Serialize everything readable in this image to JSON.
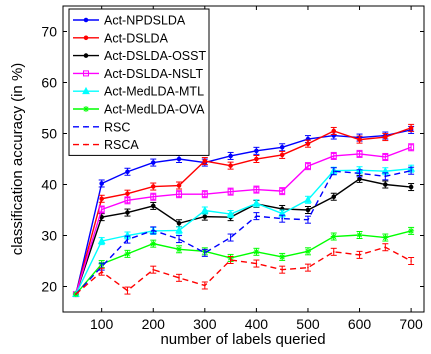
{
  "chart_data": {
    "type": "line",
    "title": "",
    "xlabel": "number of labels queried",
    "ylabel": "classification accuracy (in %)",
    "xlim": [
      25,
      725
    ],
    "ylim": [
      15,
      75
    ],
    "xticks": [
      100,
      200,
      300,
      400,
      500,
      600,
      700
    ],
    "yticks": [
      20,
      30,
      40,
      50,
      60,
      70
    ],
    "legend_position": "top-left",
    "grid": false,
    "x": [
      50,
      100,
      150,
      200,
      250,
      300,
      350,
      400,
      450,
      500,
      550,
      600,
      650,
      700
    ],
    "series": [
      {
        "name": "Act-NPDSLDA",
        "color": "#0000ff",
        "dash": "solid",
        "marker": "dot",
        "values": [
          18.5,
          40.2,
          42.5,
          44.3,
          45.0,
          44.3,
          45.6,
          46.6,
          47.3,
          48.9,
          49.6,
          49.2,
          49.6,
          50.7
        ]
      },
      {
        "name": "Act-DSLDA",
        "color": "#ff0000",
        "dash": "solid",
        "marker": "dot",
        "values": [
          18.5,
          37.2,
          38.2,
          39.6,
          39.8,
          44.6,
          43.7,
          45.0,
          45.8,
          48.0,
          50.5,
          48.8,
          49.3,
          51.1
        ]
      },
      {
        "name": "Act-DSLDA-OSST",
        "color": "#000000",
        "dash": "solid",
        "marker": "dot",
        "values": [
          18.5,
          33.6,
          34.5,
          35.8,
          32.4,
          33.7,
          33.6,
          36.2,
          35.2,
          35.0,
          37.6,
          41.1,
          40.0,
          39.5
        ]
      },
      {
        "name": "Act-DSLDA-NSLT",
        "color": "#ff00ff",
        "dash": "solid",
        "marker": "square",
        "values": [
          18.5,
          35.1,
          36.9,
          37.6,
          38.1,
          38.1,
          38.6,
          39.0,
          38.7,
          43.6,
          45.6,
          46.0,
          45.4,
          47.3
        ]
      },
      {
        "name": "Act-MedLDA-MTL",
        "color": "#00ffff",
        "dash": "solid",
        "marker": "triangle",
        "values": [
          18.5,
          28.9,
          30.0,
          30.9,
          31.0,
          34.9,
          34.2,
          36.3,
          34.3,
          37.0,
          42.7,
          42.8,
          42.6,
          43.1
        ]
      },
      {
        "name": "Act-MedLDA-OVA",
        "color": "#00ff00",
        "dash": "solid",
        "marker": "star",
        "values": [
          18.5,
          24.4,
          26.4,
          28.4,
          27.3,
          26.9,
          25.6,
          26.8,
          25.8,
          26.9,
          29.8,
          30.1,
          29.6,
          30.9
        ]
      },
      {
        "name": "RSC",
        "color": "#0000ff",
        "dash": "dashed",
        "marker": "none",
        "values": [
          18.5,
          23.9,
          29.2,
          31.0,
          29.3,
          26.6,
          29.6,
          33.8,
          33.3,
          33.1,
          42.6,
          42.2,
          41.6,
          42.7
        ]
      },
      {
        "name": "RSCA",
        "color": "#ff0000",
        "dash": "dashed",
        "marker": "none",
        "values": [
          18.5,
          22.9,
          19.2,
          23.3,
          21.7,
          20.2,
          25.2,
          24.5,
          23.3,
          23.7,
          26.8,
          26.2,
          27.7,
          25.0
        ]
      }
    ]
  }
}
